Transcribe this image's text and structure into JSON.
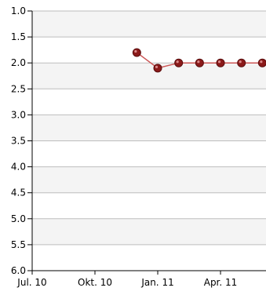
{
  "chart_data": {
    "type": "line",
    "title": "",
    "xlabel": "",
    "ylabel": "",
    "y_inverted": true,
    "ylim": [
      1.0,
      6.0
    ],
    "y_ticks": [
      "1.0",
      "1.5",
      "2.0",
      "2.5",
      "3.0",
      "3.5",
      "4.0",
      "4.5",
      "5.0",
      "5.5",
      "6.0"
    ],
    "x_ticks": [
      "Jul. 10",
      "Okt. 10",
      "Jan. 11",
      "Apr. 11"
    ],
    "grid": "horizontal",
    "band_colors": [
      "#f4f4f4",
      "#ffffff"
    ],
    "series": [
      {
        "color": "#cc5555",
        "marker_color": "#8b1a1a",
        "x": [
          "Dez. 10",
          "Jan. 11",
          "Feb. 11",
          "Mär. 11",
          "Apr. 11",
          "Mai 11",
          "Jun. 11"
        ],
        "values": [
          1.8,
          2.1,
          2.0,
          2.0,
          2.0,
          2.0,
          2.0
        ]
      }
    ]
  }
}
